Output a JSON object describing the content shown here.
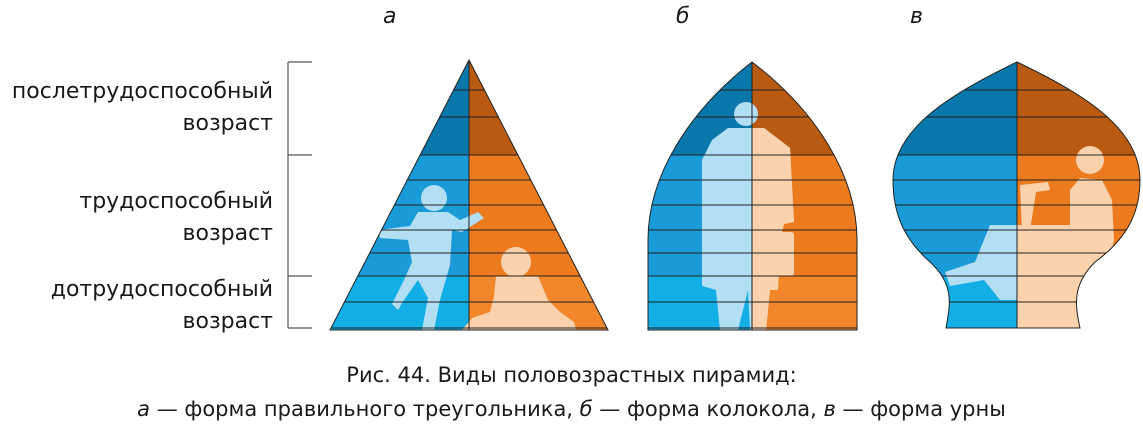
{
  "pyramids": [
    {
      "letter": "а",
      "shape": "triangle"
    },
    {
      "letter": "б",
      "shape": "bell"
    },
    {
      "letter": "в",
      "shape": "urn"
    }
  ],
  "age_groups": {
    "post_working": {
      "line1": "послетрудоспособный",
      "line2": "возраст"
    },
    "working": {
      "line1": "трудоспособный",
      "line2": "возраст"
    },
    "pre_working": {
      "line1": "дотрудоспособный",
      "line2": "возраст"
    }
  },
  "caption": {
    "line1": "Рис. 44. Виды половозрастных пирамид:",
    "a_letter": "а",
    "a_text": " — форма правильного треугольника, ",
    "b_letter": "б",
    "b_text": " — форма колокола, ",
    "c_letter": "в",
    "c_text": " — форма урны"
  },
  "colors": {
    "male_old": "#0a77ab",
    "male_working": "#1a9bd8",
    "male_young": "#14aee6",
    "female_old": "#b85a12",
    "female_working": "#ec7a1e",
    "female_young": "#f2862a",
    "male_figure": "#b3dff5",
    "female_figure": "#fcd2ad"
  }
}
